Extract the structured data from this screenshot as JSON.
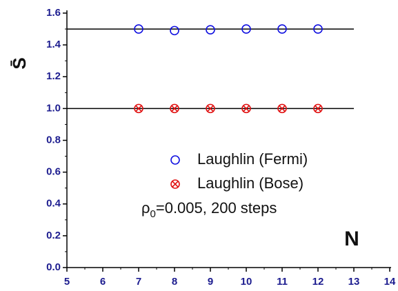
{
  "chart_data": {
    "type": "scatter",
    "x_label": "N",
    "y_label": "S̄",
    "x": [
      7,
      8,
      9,
      10,
      11,
      12
    ],
    "series": [
      {
        "name": "Laughlin (Fermi)",
        "color": "#1010e0",
        "marker": "circle",
        "values": [
          1.5,
          1.49,
          1.495,
          1.5,
          1.5,
          1.5
        ]
      },
      {
        "name": "Laughlin (Bose)",
        "color": "#e01010",
        "marker": "crossed-circle",
        "values": [
          1.0,
          1.0,
          1.0,
          1.0,
          1.0,
          1.0
        ]
      }
    ],
    "reference_lines": [
      {
        "y": 1.5,
        "xlim": [
          5,
          13
        ]
      },
      {
        "y": 1.0,
        "xlim": [
          5,
          13
        ]
      }
    ],
    "annotation": {
      "symbol": "ρ",
      "subscript": "0",
      "text": "=0.005, 200 steps"
    },
    "xlim": [
      5,
      14
    ],
    "xticks": [
      5,
      6,
      7,
      8,
      9,
      10,
      11,
      12,
      13,
      14
    ],
    "ylim": [
      0,
      1.6
    ],
    "yticks": [
      {
        "value": 0,
        "label": "0.0"
      },
      0.2,
      0.4,
      0.6,
      0.8,
      {
        "value": 1,
        "label": "1.0"
      },
      1.2,
      1.4,
      1.6
    ],
    "grid": false
  }
}
